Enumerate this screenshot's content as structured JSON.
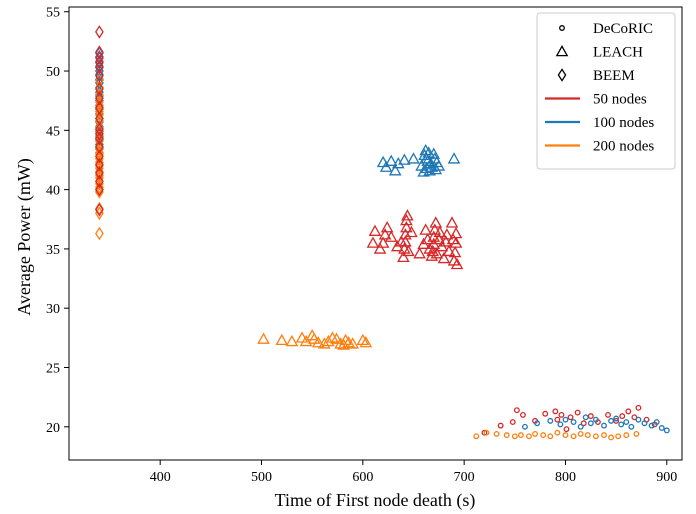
{
  "chart_data": {
    "type": "scatter",
    "xlabel": "Time of First node death (s)",
    "ylabel": "Average Power (mW)",
    "xlim": [
      310,
      915
    ],
    "ylim": [
      17.2,
      55.4
    ],
    "xticks": [
      400,
      500,
      600,
      700,
      800,
      900
    ],
    "yticks": [
      20,
      25,
      30,
      35,
      40,
      45,
      50,
      55
    ],
    "grid": false,
    "legend_position": "top-right",
    "legend": {
      "markers": [
        {
          "label": "DeCoRIC",
          "marker": "circle"
        },
        {
          "label": "LEACH",
          "marker": "triangle"
        },
        {
          "label": "BEEM",
          "marker": "diamond"
        }
      ],
      "colors": [
        {
          "label": "50 nodes",
          "color": "#d62728"
        },
        {
          "label": "100 nodes",
          "color": "#1f77b4"
        },
        {
          "label": "200 nodes",
          "color": "#ff7f0e"
        }
      ]
    },
    "series": [
      {
        "name": "BEEM 100 nodes",
        "marker": "diamond",
        "color": "#1f77b4",
        "x": [
          340,
          340,
          340,
          340,
          340,
          340,
          340,
          340,
          340,
          340,
          340,
          340,
          340,
          340,
          340,
          340,
          340,
          340,
          340,
          340,
          340,
          340,
          340,
          340
        ],
        "y": [
          51.5,
          51.2,
          50.8,
          50.4,
          50.0,
          49.7,
          49.3,
          49.0,
          48.6,
          48.2,
          47.9,
          47.5,
          47.1,
          46.8,
          46.4,
          46.0,
          45.7,
          45.3,
          44.9,
          44.5,
          44.2,
          43.8,
          43.5,
          43.1
        ]
      },
      {
        "name": "BEEM 200 nodes",
        "marker": "diamond",
        "color": "#ff7f0e",
        "x": [
          340,
          340,
          340,
          340,
          340,
          340,
          340,
          340,
          340,
          340,
          340,
          340,
          340,
          340,
          340,
          340,
          340,
          340,
          340,
          340,
          340,
          340,
          340,
          340,
          340,
          340,
          340,
          340,
          340,
          340,
          340,
          340
        ],
        "y": [
          48.6,
          48.0,
          47.4,
          46.9,
          46.3,
          45.8,
          45.2,
          44.7,
          44.1,
          43.6,
          43.1,
          42.6,
          42.0,
          41.5,
          41.0,
          40.5,
          40.0,
          39.8,
          47.1,
          45.0,
          43.4,
          42.3,
          41.2,
          49.2,
          38.4,
          38.0,
          36.3,
          46.6,
          44.4,
          43.0,
          41.8,
          40.2
        ]
      },
      {
        "name": "BEEM 50 nodes",
        "marker": "diamond",
        "color": "#d62728",
        "x": [
          340,
          340,
          340,
          340,
          340,
          340,
          340,
          340,
          340,
          340,
          340,
          340,
          340,
          340,
          340,
          340,
          340,
          340,
          340,
          340
        ],
        "y": [
          53.3,
          51.6,
          51.1,
          50.3,
          49.6,
          48.5,
          47.7,
          46.9,
          46.0,
          45.1,
          44.3,
          43.6,
          42.8,
          42.1,
          41.4,
          40.7,
          40.0,
          38.3,
          50.7,
          44.7
        ]
      },
      {
        "name": "LEACH 50 nodes",
        "marker": "triangle",
        "color": "#d62728",
        "x": [
          610,
          612,
          617,
          620,
          622,
          624,
          628,
          634,
          638,
          640,
          641,
          642,
          642,
          643,
          643,
          644,
          645,
          648,
          656,
          660,
          662,
          664,
          666,
          668,
          669,
          670,
          670,
          671,
          672,
          673,
          675,
          676,
          678,
          680,
          682,
          683,
          685,
          688,
          689,
          690,
          691,
          692,
          692,
          693
        ],
        "y": [
          35.5,
          36.5,
          35.0,
          35.5,
          36.2,
          36.8,
          36.0,
          35.2,
          35.6,
          34.3,
          35.0,
          35.6,
          36.2,
          36.8,
          37.4,
          37.8,
          34.8,
          36.4,
          34.6,
          35.4,
          36.6,
          35.8,
          35.0,
          34.4,
          34.8,
          35.4,
          36.0,
          36.6,
          37.2,
          34.6,
          35.8,
          36.4,
          35.2,
          34.2,
          35.6,
          36.2,
          34.8,
          37.2,
          35.8,
          34.0,
          34.7,
          35.5,
          36.3,
          33.7
        ]
      },
      {
        "name": "LEACH 100 nodes",
        "marker": "triangle",
        "color": "#1f77b4",
        "x": [
          620,
          623,
          628,
          632,
          635,
          641,
          650,
          658,
          660,
          661,
          662,
          663,
          663,
          664,
          665,
          666,
          667,
          668,
          670,
          671,
          672,
          673,
          675,
          690
        ],
        "y": [
          42.3,
          41.9,
          42.4,
          41.6,
          42.2,
          42.5,
          42.6,
          42.0,
          41.5,
          42.9,
          43.3,
          42.6,
          41.8,
          42.4,
          43.1,
          41.6,
          42.2,
          41.9,
          43.0,
          42.6,
          41.7,
          42.3,
          42.0,
          42.6
        ]
      },
      {
        "name": "LEACH 200 nodes",
        "marker": "triangle",
        "color": "#ff7f0e",
        "x": [
          502,
          520,
          530,
          540,
          544,
          550,
          552,
          556,
          562,
          566,
          570,
          574,
          578,
          581,
          583,
          586,
          590,
          600,
          603
        ],
        "y": [
          27.4,
          27.3,
          27.2,
          27.5,
          27.2,
          27.7,
          27.4,
          27.1,
          27.0,
          27.2,
          27.5,
          27.4,
          27.0,
          26.9,
          27.3,
          27.1,
          27.0,
          27.3,
          27.1
        ]
      },
      {
        "name": "DeCoRIC 50 nodes",
        "marker": "circle",
        "color": "#d62728",
        "x": [
          720,
          736,
          748,
          752,
          758,
          770,
          780,
          790,
          792,
          796,
          801,
          805,
          812,
          818,
          825,
          832,
          842,
          850,
          856,
          862,
          868,
          872,
          880,
          888
        ],
        "y": [
          19.5,
          20.1,
          20.4,
          21.4,
          21.0,
          20.5,
          21.1,
          21.3,
          20.6,
          21.0,
          19.8,
          20.8,
          21.2,
          20.3,
          20.9,
          20.4,
          21.0,
          20.5,
          20.9,
          21.3,
          20.8,
          21.6,
          20.6,
          20.2
        ]
      },
      {
        "name": "DeCoRIC 100 nodes",
        "marker": "circle",
        "color": "#1f77b4",
        "x": [
          760,
          772,
          785,
          795,
          800,
          808,
          815,
          820,
          825,
          830,
          838,
          845,
          850,
          855,
          860,
          865,
          872,
          878,
          885,
          890,
          895,
          900
        ],
        "y": [
          20.0,
          20.3,
          20.5,
          20.2,
          20.6,
          20.4,
          20.0,
          20.8,
          20.3,
          20.6,
          20.1,
          20.5,
          20.7,
          20.2,
          20.4,
          20.0,
          20.6,
          20.3,
          20.1,
          20.4,
          19.9,
          19.7
        ]
      },
      {
        "name": "DeCoRIC 200 nodes",
        "marker": "circle",
        "color": "#ff7f0e",
        "x": [
          712,
          722,
          732,
          742,
          750,
          756,
          764,
          770,
          778,
          785,
          792,
          800,
          808,
          815,
          822,
          830,
          838,
          845,
          852,
          860,
          870
        ],
        "y": [
          19.2,
          19.5,
          19.4,
          19.3,
          19.2,
          19.3,
          19.2,
          19.4,
          19.3,
          19.2,
          19.5,
          19.3,
          19.2,
          19.4,
          19.3,
          19.2,
          19.3,
          19.1,
          19.2,
          19.3,
          19.4
        ]
      }
    ]
  }
}
